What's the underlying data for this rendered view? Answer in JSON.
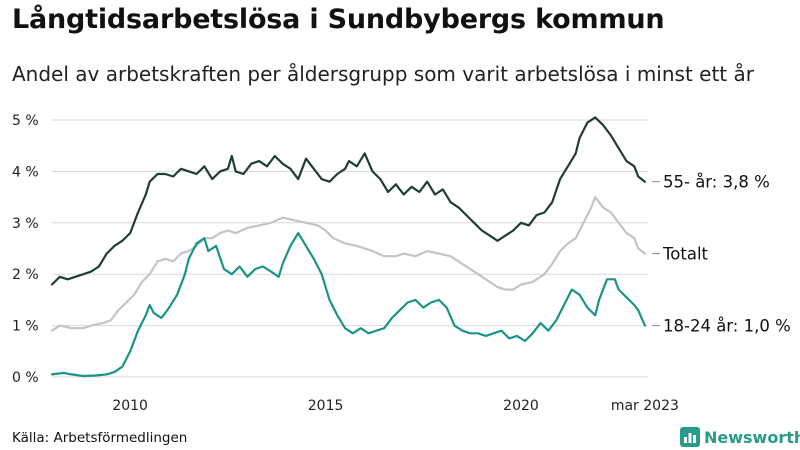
{
  "chart_data": {
    "type": "line",
    "title": "Långtidsarbetslösa i Sundbybergs kommun",
    "subtitle": "Andel av arbetskraften per åldersgrupp som varit arbetslösa i minst ett år",
    "xlim": [
      2008.0,
      2023.25
    ],
    "ylim": [
      0,
      5
    ],
    "y_ticks": [
      {
        "value": 0,
        "label": "0 %"
      },
      {
        "value": 1,
        "label": "1 %"
      },
      {
        "value": 2,
        "label": "2 %"
      },
      {
        "value": 3,
        "label": "3 %"
      },
      {
        "value": 4,
        "label": "4 %"
      },
      {
        "value": 5,
        "label": "5 %"
      }
    ],
    "x_ticks": [
      {
        "value": 2010,
        "label": "2010"
      },
      {
        "value": 2015,
        "label": "2015"
      },
      {
        "value": 2020,
        "label": "2020"
      },
      {
        "value": 2023.17,
        "label": "mar 2023"
      }
    ],
    "grid": "horizontal",
    "series": [
      {
        "name": "55- år",
        "end_label": "55- år: 3,8 %",
        "color": "#1f3d36",
        "points": [
          [
            2008.0,
            1.8
          ],
          [
            2008.2,
            1.95
          ],
          [
            2008.4,
            1.9
          ],
          [
            2008.6,
            1.95
          ],
          [
            2008.8,
            2.0
          ],
          [
            2009.0,
            2.05
          ],
          [
            2009.2,
            2.15
          ],
          [
            2009.4,
            2.4
          ],
          [
            2009.6,
            2.55
          ],
          [
            2009.8,
            2.65
          ],
          [
            2010.0,
            2.8
          ],
          [
            2010.2,
            3.2
          ],
          [
            2010.4,
            3.55
          ],
          [
            2010.5,
            3.8
          ],
          [
            2010.7,
            3.95
          ],
          [
            2010.9,
            3.95
          ],
          [
            2011.1,
            3.9
          ],
          [
            2011.3,
            4.05
          ],
          [
            2011.5,
            4.0
          ],
          [
            2011.7,
            3.95
          ],
          [
            2011.9,
            4.1
          ],
          [
            2012.1,
            3.85
          ],
          [
            2012.3,
            4.0
          ],
          [
            2012.5,
            4.05
          ],
          [
            2012.6,
            4.3
          ],
          [
            2012.7,
            4.0
          ],
          [
            2012.9,
            3.95
          ],
          [
            2013.1,
            4.15
          ],
          [
            2013.3,
            4.2
          ],
          [
            2013.5,
            4.1
          ],
          [
            2013.7,
            4.3
          ],
          [
            2013.9,
            4.15
          ],
          [
            2014.1,
            4.05
          ],
          [
            2014.3,
            3.85
          ],
          [
            2014.5,
            4.25
          ],
          [
            2014.7,
            4.05
          ],
          [
            2014.9,
            3.85
          ],
          [
            2015.1,
            3.8
          ],
          [
            2015.3,
            3.95
          ],
          [
            2015.5,
            4.05
          ],
          [
            2015.6,
            4.2
          ],
          [
            2015.8,
            4.1
          ],
          [
            2016.0,
            4.35
          ],
          [
            2016.2,
            4.0
          ],
          [
            2016.4,
            3.85
          ],
          [
            2016.6,
            3.6
          ],
          [
            2016.8,
            3.75
          ],
          [
            2017.0,
            3.55
          ],
          [
            2017.2,
            3.7
          ],
          [
            2017.4,
            3.6
          ],
          [
            2017.6,
            3.8
          ],
          [
            2017.8,
            3.55
          ],
          [
            2018.0,
            3.65
          ],
          [
            2018.2,
            3.4
          ],
          [
            2018.4,
            3.3
          ],
          [
            2018.6,
            3.15
          ],
          [
            2018.8,
            3.0
          ],
          [
            2019.0,
            2.85
          ],
          [
            2019.2,
            2.75
          ],
          [
            2019.4,
            2.65
          ],
          [
            2019.6,
            2.75
          ],
          [
            2019.8,
            2.85
          ],
          [
            2020.0,
            3.0
          ],
          [
            2020.2,
            2.95
          ],
          [
            2020.4,
            3.15
          ],
          [
            2020.6,
            3.2
          ],
          [
            2020.8,
            3.4
          ],
          [
            2021.0,
            3.85
          ],
          [
            2021.2,
            4.1
          ],
          [
            2021.4,
            4.35
          ],
          [
            2021.5,
            4.65
          ],
          [
            2021.7,
            4.95
          ],
          [
            2021.9,
            5.05
          ],
          [
            2022.1,
            4.9
          ],
          [
            2022.3,
            4.7
          ],
          [
            2022.5,
            4.45
          ],
          [
            2022.7,
            4.2
          ],
          [
            2022.9,
            4.1
          ],
          [
            2023.0,
            3.9
          ],
          [
            2023.17,
            3.8
          ]
        ]
      },
      {
        "name": "Totalt",
        "end_label": "Totalt",
        "color": "#c4c3cb",
        "points": [
          [
            2008.0,
            0.9
          ],
          [
            2008.2,
            1.0
          ],
          [
            2008.5,
            0.95
          ],
          [
            2008.8,
            0.95
          ],
          [
            2009.0,
            1.0
          ],
          [
            2009.3,
            1.05
          ],
          [
            2009.5,
            1.1
          ],
          [
            2009.7,
            1.3
          ],
          [
            2009.9,
            1.45
          ],
          [
            2010.1,
            1.6
          ],
          [
            2010.3,
            1.85
          ],
          [
            2010.5,
            2.0
          ],
          [
            2010.7,
            2.25
          ],
          [
            2010.9,
            2.3
          ],
          [
            2011.1,
            2.25
          ],
          [
            2011.3,
            2.4
          ],
          [
            2011.5,
            2.45
          ],
          [
            2011.7,
            2.55
          ],
          [
            2011.9,
            2.7
          ],
          [
            2012.1,
            2.7
          ],
          [
            2012.3,
            2.8
          ],
          [
            2012.5,
            2.85
          ],
          [
            2012.7,
            2.8
          ],
          [
            2013.0,
            2.9
          ],
          [
            2013.3,
            2.95
          ],
          [
            2013.6,
            3.0
          ],
          [
            2013.9,
            3.1
          ],
          [
            2014.2,
            3.05
          ],
          [
            2014.5,
            3.0
          ],
          [
            2014.8,
            2.95
          ],
          [
            2015.0,
            2.85
          ],
          [
            2015.2,
            2.7
          ],
          [
            2015.5,
            2.6
          ],
          [
            2015.8,
            2.55
          ],
          [
            2016.0,
            2.5
          ],
          [
            2016.2,
            2.45
          ],
          [
            2016.5,
            2.35
          ],
          [
            2016.8,
            2.35
          ],
          [
            2017.0,
            2.4
          ],
          [
            2017.3,
            2.35
          ],
          [
            2017.6,
            2.45
          ],
          [
            2017.9,
            2.4
          ],
          [
            2018.2,
            2.35
          ],
          [
            2018.5,
            2.2
          ],
          [
            2018.8,
            2.05
          ],
          [
            2019.1,
            1.9
          ],
          [
            2019.4,
            1.75
          ],
          [
            2019.6,
            1.7
          ],
          [
            2019.8,
            1.7
          ],
          [
            2020.0,
            1.8
          ],
          [
            2020.3,
            1.85
          ],
          [
            2020.6,
            2.0
          ],
          [
            2020.8,
            2.2
          ],
          [
            2021.0,
            2.45
          ],
          [
            2021.2,
            2.6
          ],
          [
            2021.4,
            2.7
          ],
          [
            2021.6,
            3.0
          ],
          [
            2021.8,
            3.3
          ],
          [
            2021.9,
            3.5
          ],
          [
            2022.1,
            3.3
          ],
          [
            2022.3,
            3.2
          ],
          [
            2022.5,
            3.0
          ],
          [
            2022.7,
            2.8
          ],
          [
            2022.9,
            2.7
          ],
          [
            2023.0,
            2.5
          ],
          [
            2023.17,
            2.4
          ]
        ]
      },
      {
        "name": "18-24 år",
        "end_label": "18-24 år: 1,0 %",
        "color": "#1a9585",
        "points": [
          [
            2008.0,
            0.05
          ],
          [
            2008.3,
            0.08
          ],
          [
            2008.5,
            0.05
          ],
          [
            2008.8,
            0.02
          ],
          [
            2009.1,
            0.03
          ],
          [
            2009.4,
            0.05
          ],
          [
            2009.6,
            0.1
          ],
          [
            2009.8,
            0.2
          ],
          [
            2010.0,
            0.5
          ],
          [
            2010.2,
            0.9
          ],
          [
            2010.4,
            1.2
          ],
          [
            2010.5,
            1.4
          ],
          [
            2010.6,
            1.25
          ],
          [
            2010.8,
            1.15
          ],
          [
            2011.0,
            1.35
          ],
          [
            2011.2,
            1.6
          ],
          [
            2011.4,
            2.0
          ],
          [
            2011.5,
            2.3
          ],
          [
            2011.7,
            2.6
          ],
          [
            2011.9,
            2.7
          ],
          [
            2012.0,
            2.45
          ],
          [
            2012.2,
            2.55
          ],
          [
            2012.4,
            2.1
          ],
          [
            2012.6,
            2.0
          ],
          [
            2012.8,
            2.15
          ],
          [
            2013.0,
            1.95
          ],
          [
            2013.2,
            2.1
          ],
          [
            2013.4,
            2.15
          ],
          [
            2013.6,
            2.05
          ],
          [
            2013.8,
            1.95
          ],
          [
            2013.9,
            2.2
          ],
          [
            2014.1,
            2.55
          ],
          [
            2014.3,
            2.8
          ],
          [
            2014.5,
            2.55
          ],
          [
            2014.7,
            2.3
          ],
          [
            2014.9,
            2.0
          ],
          [
            2015.1,
            1.5
          ],
          [
            2015.3,
            1.2
          ],
          [
            2015.5,
            0.95
          ],
          [
            2015.7,
            0.85
          ],
          [
            2015.9,
            0.95
          ],
          [
            2016.1,
            0.85
          ],
          [
            2016.3,
            0.9
          ],
          [
            2016.5,
            0.95
          ],
          [
            2016.7,
            1.15
          ],
          [
            2016.9,
            1.3
          ],
          [
            2017.1,
            1.45
          ],
          [
            2017.3,
            1.5
          ],
          [
            2017.5,
            1.35
          ],
          [
            2017.7,
            1.45
          ],
          [
            2017.9,
            1.5
          ],
          [
            2018.1,
            1.35
          ],
          [
            2018.3,
            1.0
          ],
          [
            2018.5,
            0.9
          ],
          [
            2018.7,
            0.85
          ],
          [
            2018.9,
            0.85
          ],
          [
            2019.1,
            0.8
          ],
          [
            2019.3,
            0.85
          ],
          [
            2019.5,
            0.9
          ],
          [
            2019.7,
            0.75
          ],
          [
            2019.9,
            0.8
          ],
          [
            2020.1,
            0.7
          ],
          [
            2020.3,
            0.85
          ],
          [
            2020.5,
            1.05
          ],
          [
            2020.7,
            0.9
          ],
          [
            2020.9,
            1.1
          ],
          [
            2021.1,
            1.4
          ],
          [
            2021.3,
            1.7
          ],
          [
            2021.5,
            1.6
          ],
          [
            2021.7,
            1.35
          ],
          [
            2021.9,
            1.2
          ],
          [
            2022.0,
            1.5
          ],
          [
            2022.2,
            1.9
          ],
          [
            2022.4,
            1.9
          ],
          [
            2022.5,
            1.7
          ],
          [
            2022.7,
            1.55
          ],
          [
            2022.9,
            1.4
          ],
          [
            2023.0,
            1.3
          ],
          [
            2023.17,
            1.0
          ]
        ]
      }
    ]
  },
  "source": "Källa: Arbetsförmedlingen",
  "brand": {
    "name": "Newsworthy",
    "icon": "bar-chart-icon",
    "color": "#2a9a8a"
  }
}
